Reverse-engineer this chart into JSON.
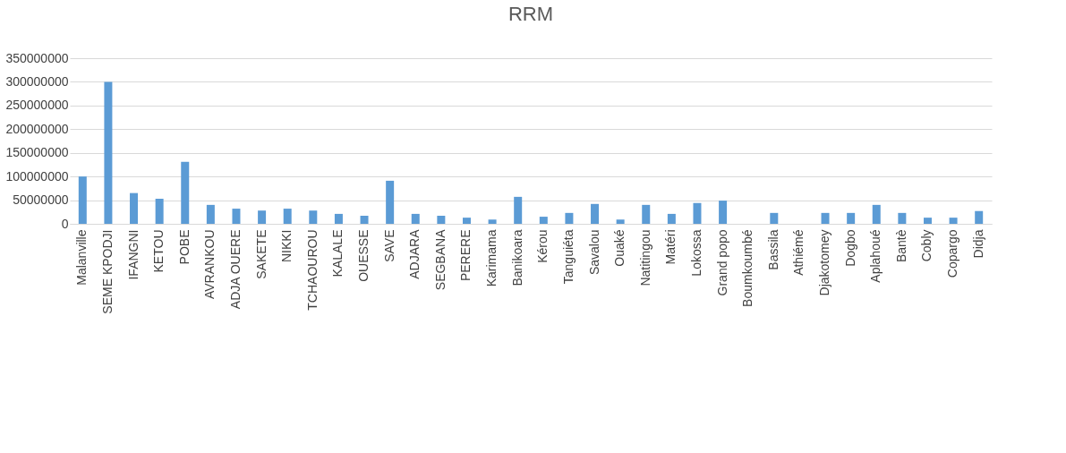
{
  "chart_data": {
    "type": "bar",
    "title": "RRM",
    "categories": [
      "Malanville",
      "SEME KPODJI",
      "IFANGNI",
      "KETOU",
      "POBE",
      "AVRANKOU",
      "ADJA OUERE",
      "SAKETE",
      "NIKKI",
      "TCHAOUROU",
      "KALALE",
      "OUESSE",
      "SAVE",
      "ADJARA",
      "SEGBANA",
      "PERERE",
      "Karimama",
      "Banikoara",
      "Kérou",
      "Tanguiéta",
      "Savalou",
      "Ouaké",
      "Natitingou",
      "Matéri",
      "Lokossa",
      "Grand popo",
      "Boumkoumbé",
      "Bassila",
      "Athiémé",
      "Djakotomey",
      "Dogbo",
      "Aplahoué",
      "Bantè",
      "Cobly",
      "Copargo",
      "Didja"
    ],
    "values": [
      100000000,
      300000000,
      65000000,
      53000000,
      131000000,
      40000000,
      32000000,
      28000000,
      32000000,
      28000000,
      21000000,
      17000000,
      91000000,
      21000000,
      17000000,
      13000000,
      9000000,
      57000000,
      15000000,
      23000000,
      42000000,
      9000000,
      40000000,
      21000000,
      44000000,
      49000000,
      0,
      23000000,
      0,
      23000000,
      23000000,
      40000000,
      23000000,
      13000000,
      13000000,
      27000000
    ],
    "color": "#5b9bd5",
    "ylim": [
      0,
      350000000
    ],
    "yticks": [
      0,
      50000000,
      100000000,
      150000000,
      200000000,
      250000000,
      300000000,
      350000000
    ],
    "grid": "y"
  }
}
